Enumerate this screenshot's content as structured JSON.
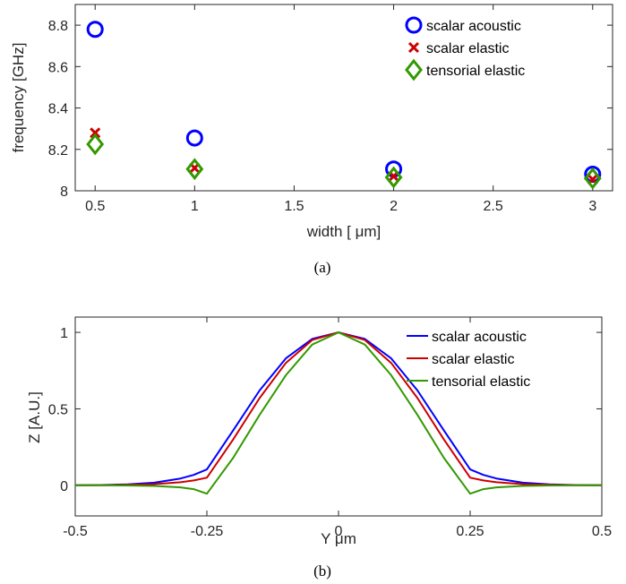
{
  "colors": {
    "scalar_acoustic": "#0000ff",
    "scalar_elastic": "#cc0000",
    "tensorial_elastic": "#339900",
    "axis": "#262626"
  },
  "chart_data": [
    {
      "type": "scatter",
      "caption": "(a)",
      "xlabel": "width [  μm]",
      "ylabel": "frequency [GHz]",
      "xlim": [
        0.4,
        3.1
      ],
      "ylim": [
        8.0,
        8.9
      ],
      "xticks": [
        0.5,
        1,
        1.5,
        2,
        2.5,
        3
      ],
      "xtick_labels": [
        "0.5",
        "1",
        "1.5",
        "2",
        "2.5",
        "3"
      ],
      "yticks": [
        8,
        8.2,
        8.4,
        8.6,
        8.8
      ],
      "ytick_labels": [
        "8",
        "8.2",
        "8.4",
        "8.6",
        "8.8"
      ],
      "grid": false,
      "legend_position": "top-right",
      "series": [
        {
          "name": "scalar acoustic",
          "marker": "circle",
          "color": "#0000ff",
          "x": [
            0.5,
            1,
            2,
            3
          ],
          "y": [
            8.78,
            8.255,
            8.105,
            8.08
          ]
        },
        {
          "name": "scalar elastic",
          "marker": "x",
          "color": "#cc0000",
          "x": [
            0.5,
            1,
            2,
            3
          ],
          "y": [
            8.28,
            8.11,
            8.07,
            8.055
          ]
        },
        {
          "name": "tensorial elastic",
          "marker": "diamond",
          "color": "#339900",
          "x": [
            0.5,
            1,
            2,
            3
          ],
          "y": [
            8.225,
            8.105,
            8.065,
            8.06
          ]
        }
      ]
    },
    {
      "type": "line",
      "caption": "(b)",
      "xlabel": "Y μm",
      "ylabel": "Z [A.U.]",
      "xlim": [
        -0.5,
        0.5
      ],
      "ylim": [
        -0.2,
        1.1
      ],
      "xticks": [
        -0.5,
        -0.25,
        0,
        0.25,
        0.5
      ],
      "xtick_labels": [
        "-0.5",
        "-0.25",
        "0",
        "0.25",
        "0.5"
      ],
      "yticks": [
        0,
        0.5,
        1
      ],
      "ytick_labels": [
        "0",
        "0.5",
        "1"
      ],
      "grid": false,
      "legend_position": "top-right",
      "x": [
        -0.5,
        -0.45,
        -0.4,
        -0.35,
        -0.3,
        -0.275,
        -0.25,
        -0.2,
        -0.15,
        -0.1,
        -0.05,
        0,
        0.05,
        0.1,
        0.15,
        0.2,
        0.25,
        0.275,
        0.3,
        0.35,
        0.4,
        0.45,
        0.5
      ],
      "series": [
        {
          "name": "scalar acoustic",
          "color": "#0000ff",
          "values": [
            0.0,
            0.002,
            0.006,
            0.017,
            0.045,
            0.068,
            0.104,
            0.36,
            0.62,
            0.83,
            0.957,
            1.0,
            0.957,
            0.83,
            0.62,
            0.36,
            0.104,
            0.068,
            0.045,
            0.017,
            0.006,
            0.002,
            0.0
          ]
        },
        {
          "name": "scalar elastic",
          "color": "#cc0000",
          "values": [
            0.0,
            0.001,
            0.003,
            0.008,
            0.02,
            0.032,
            0.05,
            0.3,
            0.57,
            0.8,
            0.95,
            1.0,
            0.95,
            0.8,
            0.57,
            0.3,
            0.05,
            0.032,
            0.02,
            0.008,
            0.003,
            0.001,
            0.0
          ]
        },
        {
          "name": "tensorial elastic",
          "color": "#339900",
          "values": [
            0.0,
            0.0,
            -0.001,
            -0.004,
            -0.013,
            -0.025,
            -0.055,
            0.18,
            0.46,
            0.72,
            0.92,
            1.0,
            0.92,
            0.72,
            0.46,
            0.18,
            -0.055,
            -0.025,
            -0.013,
            -0.004,
            -0.001,
            0.0,
            0.0
          ]
        }
      ]
    }
  ]
}
